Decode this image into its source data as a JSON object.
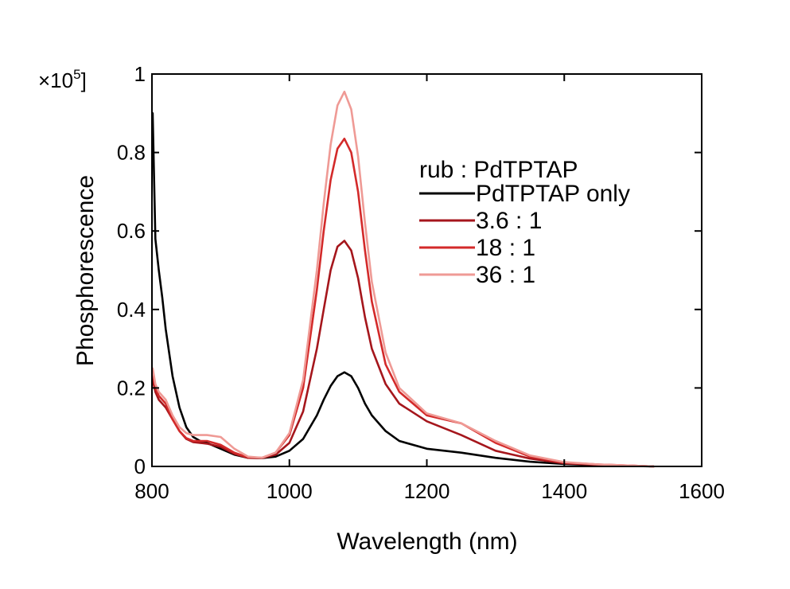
{
  "chart_data": {
    "type": "line",
    "title": "",
    "xlabel": "Wavelength (nm)",
    "ylabel": "Phosphorescence",
    "y_multiplier": {
      "base": "×10",
      "exponent": "5",
      "bracket": "]"
    },
    "xlim": [
      800,
      1600
    ],
    "ylim": [
      0,
      1
    ],
    "x_ticks": [
      {
        "value": 800,
        "label": "800"
      },
      {
        "value": 1000,
        "label": "1000"
      },
      {
        "value": 1200,
        "label": "1200"
      },
      {
        "value": 1400,
        "label": "1400"
      },
      {
        "value": 1600,
        "label": "1600"
      }
    ],
    "y_ticks": [
      {
        "value": 0,
        "label": "0"
      },
      {
        "value": 0.2,
        "label": "0.2"
      },
      {
        "value": 0.4,
        "label": "0.4"
      },
      {
        "value": 0.6,
        "label": "0.6"
      },
      {
        "value": 0.8,
        "label": "0.8"
      },
      {
        "value": 1,
        "label": "1"
      }
    ],
    "grid": false,
    "legend": {
      "title": "rub : PdTPTAP",
      "placement": "top-right"
    },
    "series": [
      {
        "name": "PdTPTAP only",
        "color": "#000000",
        "x": [
          801,
          805,
          810,
          815,
          820,
          830,
          840,
          850,
          860,
          870,
          880,
          900,
          920,
          940,
          960,
          980,
          1000,
          1020,
          1040,
          1050,
          1060,
          1070,
          1080,
          1090,
          1100,
          1110,
          1120,
          1140,
          1160,
          1200,
          1250,
          1300,
          1350,
          1400,
          1450,
          1500,
          1530
        ],
        "y": [
          0.9,
          0.58,
          0.5,
          0.43,
          0.35,
          0.23,
          0.15,
          0.1,
          0.075,
          0.065,
          0.06,
          0.045,
          0.03,
          0.022,
          0.021,
          0.025,
          0.04,
          0.07,
          0.13,
          0.17,
          0.205,
          0.23,
          0.24,
          0.23,
          0.2,
          0.16,
          0.13,
          0.09,
          0.065,
          0.045,
          0.035,
          0.022,
          0.012,
          0.006,
          0.003,
          0.001,
          0
        ]
      },
      {
        "name": "3.6 : 1",
        "color": "#a5161c",
        "x": [
          801,
          805,
          810,
          820,
          830,
          840,
          850,
          860,
          870,
          880,
          900,
          920,
          940,
          960,
          980,
          1000,
          1020,
          1040,
          1050,
          1060,
          1070,
          1080,
          1090,
          1100,
          1110,
          1120,
          1140,
          1160,
          1200,
          1250,
          1300,
          1350,
          1400,
          1450,
          1500,
          1530
        ],
        "y": [
          0.22,
          0.19,
          0.17,
          0.15,
          0.12,
          0.09,
          0.07,
          0.062,
          0.06,
          0.058,
          0.05,
          0.032,
          0.022,
          0.021,
          0.03,
          0.06,
          0.14,
          0.3,
          0.4,
          0.5,
          0.56,
          0.575,
          0.55,
          0.48,
          0.38,
          0.3,
          0.21,
          0.16,
          0.115,
          0.08,
          0.04,
          0.02,
          0.008,
          0.004,
          0.002,
          0
        ]
      },
      {
        "name": "18 : 1",
        "color": "#d32a2a",
        "x": [
          801,
          805,
          810,
          820,
          830,
          840,
          850,
          860,
          870,
          880,
          900,
          920,
          940,
          960,
          980,
          1000,
          1020,
          1040,
          1050,
          1060,
          1070,
          1080,
          1090,
          1100,
          1110,
          1120,
          1140,
          1160,
          1200,
          1250,
          1300,
          1350,
          1400,
          1450,
          1500,
          1530
        ],
        "y": [
          0.24,
          0.2,
          0.18,
          0.16,
          0.12,
          0.09,
          0.072,
          0.065,
          0.065,
          0.065,
          0.055,
          0.035,
          0.023,
          0.022,
          0.035,
          0.08,
          0.2,
          0.45,
          0.6,
          0.73,
          0.81,
          0.835,
          0.8,
          0.7,
          0.55,
          0.42,
          0.26,
          0.19,
          0.13,
          0.11,
          0.06,
          0.025,
          0.01,
          0.005,
          0.002,
          0
        ]
      },
      {
        "name": "36 : 1",
        "color": "#ef9a95",
        "x": [
          801,
          805,
          810,
          820,
          830,
          840,
          850,
          860,
          870,
          880,
          900,
          920,
          940,
          960,
          980,
          1000,
          1020,
          1040,
          1050,
          1060,
          1070,
          1080,
          1090,
          1100,
          1110,
          1120,
          1140,
          1160,
          1200,
          1250,
          1300,
          1350,
          1400,
          1450,
          1500,
          1530
        ],
        "y": [
          0.25,
          0.21,
          0.19,
          0.17,
          0.13,
          0.1,
          0.085,
          0.08,
          0.08,
          0.08,
          0.075,
          0.045,
          0.025,
          0.022,
          0.035,
          0.085,
          0.22,
          0.5,
          0.67,
          0.82,
          0.92,
          0.955,
          0.91,
          0.79,
          0.62,
          0.47,
          0.29,
          0.2,
          0.135,
          0.11,
          0.065,
          0.028,
          0.011,
          0.005,
          0.002,
          0
        ]
      }
    ]
  }
}
